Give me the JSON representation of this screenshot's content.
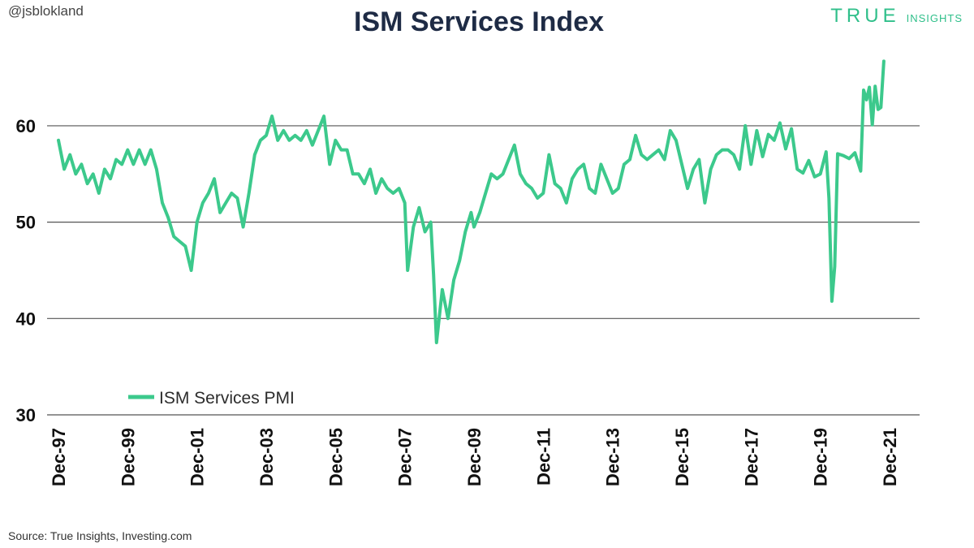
{
  "header": {
    "handle": "@jsblokland",
    "brand_main": "TRUE",
    "brand_sub": "INSIGHTS"
  },
  "footer": {
    "source": "Source: True Insights, Investing.com"
  },
  "colors": {
    "series": "#3cc98c",
    "grid": "#555555",
    "title": "#1e2b45",
    "brand": "#2fbf8a"
  },
  "chart_data": {
    "type": "line",
    "title": "ISM Services Index",
    "xlabel": "",
    "ylabel": "",
    "ylim": [
      30,
      68
    ],
    "yticks": [
      30,
      40,
      50,
      60
    ],
    "grid": "horizontal",
    "legend_position": "bottom-left",
    "x_tick_labels": [
      "Dec-97",
      "Dec-99",
      "Dec-01",
      "Dec-03",
      "Dec-05",
      "Dec-07",
      "Dec-09",
      "Dec-11",
      "Dec-13",
      "Dec-15",
      "Dec-17",
      "Dec-19",
      "Dec-21"
    ],
    "x_tick_dates": [
      "1997-12",
      "1999-12",
      "2001-12",
      "2003-12",
      "2005-12",
      "2007-12",
      "2009-12",
      "2011-12",
      "2013-12",
      "2015-12",
      "2017-12",
      "2019-12",
      "2021-12"
    ],
    "series": [
      {
        "name": "ISM Services PMI",
        "color": "#3cc98c",
        "points": [
          [
            "1997-12",
            58.5
          ],
          [
            "1998-02",
            55.5
          ],
          [
            "1998-04",
            57.0
          ],
          [
            "1998-06",
            55.0
          ],
          [
            "1998-08",
            56.0
          ],
          [
            "1998-10",
            54.0
          ],
          [
            "1998-12",
            55.0
          ],
          [
            "1999-02",
            53.0
          ],
          [
            "1999-04",
            55.5
          ],
          [
            "1999-06",
            54.5
          ],
          [
            "1999-08",
            56.5
          ],
          [
            "1999-10",
            56.0
          ],
          [
            "1999-12",
            57.5
          ],
          [
            "2000-02",
            56.0
          ],
          [
            "2000-04",
            57.5
          ],
          [
            "2000-06",
            56.0
          ],
          [
            "2000-08",
            57.5
          ],
          [
            "2000-10",
            55.5
          ],
          [
            "2000-12",
            52.0
          ],
          [
            "2001-02",
            50.5
          ],
          [
            "2001-04",
            48.5
          ],
          [
            "2001-06",
            48.0
          ],
          [
            "2001-08",
            47.5
          ],
          [
            "2001-10",
            45.0
          ],
          [
            "2001-12",
            50.0
          ],
          [
            "2002-02",
            52.0
          ],
          [
            "2002-04",
            53.0
          ],
          [
            "2002-06",
            54.5
          ],
          [
            "2002-08",
            51.0
          ],
          [
            "2002-10",
            52.0
          ],
          [
            "2002-12",
            53.0
          ],
          [
            "2003-02",
            52.5
          ],
          [
            "2003-04",
            49.5
          ],
          [
            "2003-06",
            53.0
          ],
          [
            "2003-08",
            57.0
          ],
          [
            "2003-10",
            58.5
          ],
          [
            "2003-12",
            59.0
          ],
          [
            "2004-02",
            61.0
          ],
          [
            "2004-04",
            58.5
          ],
          [
            "2004-06",
            59.5
          ],
          [
            "2004-08",
            58.5
          ],
          [
            "2004-10",
            59.0
          ],
          [
            "2004-12",
            58.5
          ],
          [
            "2005-02",
            59.5
          ],
          [
            "2005-04",
            58.0
          ],
          [
            "2005-06",
            59.5
          ],
          [
            "2005-08",
            61.0
          ],
          [
            "2005-10",
            56.0
          ],
          [
            "2005-12",
            58.5
          ],
          [
            "2006-02",
            57.5
          ],
          [
            "2006-04",
            57.5
          ],
          [
            "2006-06",
            55.0
          ],
          [
            "2006-08",
            55.0
          ],
          [
            "2006-10",
            54.0
          ],
          [
            "2006-12",
            55.5
          ],
          [
            "2007-02",
            53.0
          ],
          [
            "2007-04",
            54.5
          ],
          [
            "2007-06",
            53.5
          ],
          [
            "2007-08",
            53.0
          ],
          [
            "2007-10",
            53.5
          ],
          [
            "2007-12",
            52.0
          ],
          [
            "2008-01",
            45.0
          ],
          [
            "2008-03",
            49.5
          ],
          [
            "2008-05",
            51.5
          ],
          [
            "2008-07",
            49.0
          ],
          [
            "2008-09",
            50.0
          ],
          [
            "2008-10",
            44.5
          ],
          [
            "2008-11",
            37.5
          ],
          [
            "2009-01",
            43.0
          ],
          [
            "2009-03",
            40.0
          ],
          [
            "2009-05",
            44.0
          ],
          [
            "2009-07",
            46.0
          ],
          [
            "2009-09",
            49.0
          ],
          [
            "2009-11",
            51.0
          ],
          [
            "2009-12",
            49.5
          ],
          [
            "2010-02",
            51.0
          ],
          [
            "2010-04",
            53.0
          ],
          [
            "2010-06",
            55.0
          ],
          [
            "2010-08",
            54.5
          ],
          [
            "2010-10",
            55.0
          ],
          [
            "2010-12",
            56.5
          ],
          [
            "2011-02",
            58.0
          ],
          [
            "2011-04",
            55.0
          ],
          [
            "2011-06",
            54.0
          ],
          [
            "2011-08",
            53.5
          ],
          [
            "2011-10",
            52.5
          ],
          [
            "2011-12",
            53.0
          ],
          [
            "2012-02",
            57.0
          ],
          [
            "2012-04",
            54.0
          ],
          [
            "2012-06",
            53.5
          ],
          [
            "2012-08",
            52.0
          ],
          [
            "2012-10",
            54.5
          ],
          [
            "2012-12",
            55.5
          ],
          [
            "2013-02",
            56.0
          ],
          [
            "2013-04",
            53.5
          ],
          [
            "2013-06",
            53.0
          ],
          [
            "2013-08",
            56.0
          ],
          [
            "2013-10",
            54.5
          ],
          [
            "2013-12",
            53.0
          ],
          [
            "2014-02",
            53.5
          ],
          [
            "2014-04",
            56.0
          ],
          [
            "2014-06",
            56.5
          ],
          [
            "2014-08",
            59.0
          ],
          [
            "2014-10",
            57.0
          ],
          [
            "2014-12",
            56.5
          ],
          [
            "2015-02",
            57.0
          ],
          [
            "2015-04",
            57.5
          ],
          [
            "2015-06",
            56.5
          ],
          [
            "2015-08",
            59.5
          ],
          [
            "2015-10",
            58.5
          ],
          [
            "2015-12",
            56.0
          ],
          [
            "2016-02",
            53.5
          ],
          [
            "2016-04",
            55.5
          ],
          [
            "2016-06",
            56.5
          ],
          [
            "2016-08",
            52.0
          ],
          [
            "2016-10",
            55.5
          ],
          [
            "2016-12",
            57.0
          ],
          [
            "2017-02",
            57.5
          ],
          [
            "2017-04",
            57.5
          ],
          [
            "2017-06",
            57.0
          ],
          [
            "2017-08",
            55.5
          ],
          [
            "2017-10",
            60.0
          ],
          [
            "2017-12",
            56.0
          ],
          [
            "2018-02",
            59.5
          ],
          [
            "2018-04",
            56.8
          ],
          [
            "2018-06",
            59.1
          ],
          [
            "2018-08",
            58.5
          ],
          [
            "2018-10",
            60.3
          ],
          [
            "2018-12",
            57.6
          ],
          [
            "2019-02",
            59.7
          ],
          [
            "2019-04",
            55.5
          ],
          [
            "2019-06",
            55.1
          ],
          [
            "2019-08",
            56.4
          ],
          [
            "2019-10",
            54.7
          ],
          [
            "2019-12",
            55.0
          ],
          [
            "2020-02",
            57.3
          ],
          [
            "2020-03",
            52.5
          ],
          [
            "2020-04",
            41.8
          ],
          [
            "2020-05",
            45.4
          ],
          [
            "2020-06",
            57.1
          ],
          [
            "2020-08",
            56.9
          ],
          [
            "2020-10",
            56.6
          ],
          [
            "2020-12",
            57.2
          ],
          [
            "2021-02",
            55.3
          ],
          [
            "2021-03",
            63.7
          ],
          [
            "2021-04",
            62.7
          ],
          [
            "2021-05",
            64.0
          ],
          [
            "2021-06",
            60.1
          ],
          [
            "2021-07",
            64.1
          ],
          [
            "2021-08",
            61.7
          ],
          [
            "2021-09",
            61.9
          ],
          [
            "2021-10",
            66.7
          ]
        ]
      }
    ]
  }
}
